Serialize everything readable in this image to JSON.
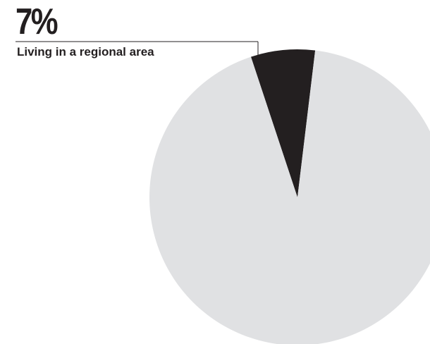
{
  "chart_data": {
    "type": "pie",
    "slices": [
      {
        "value": 7,
        "color": "#231f20",
        "highlighted": true
      },
      {
        "value": 93,
        "color": "#e0e1e3",
        "highlighted": false
      }
    ],
    "callout": {
      "value_label": "7%",
      "text": "Living in a regional area"
    },
    "title": "",
    "legend": "none"
  }
}
